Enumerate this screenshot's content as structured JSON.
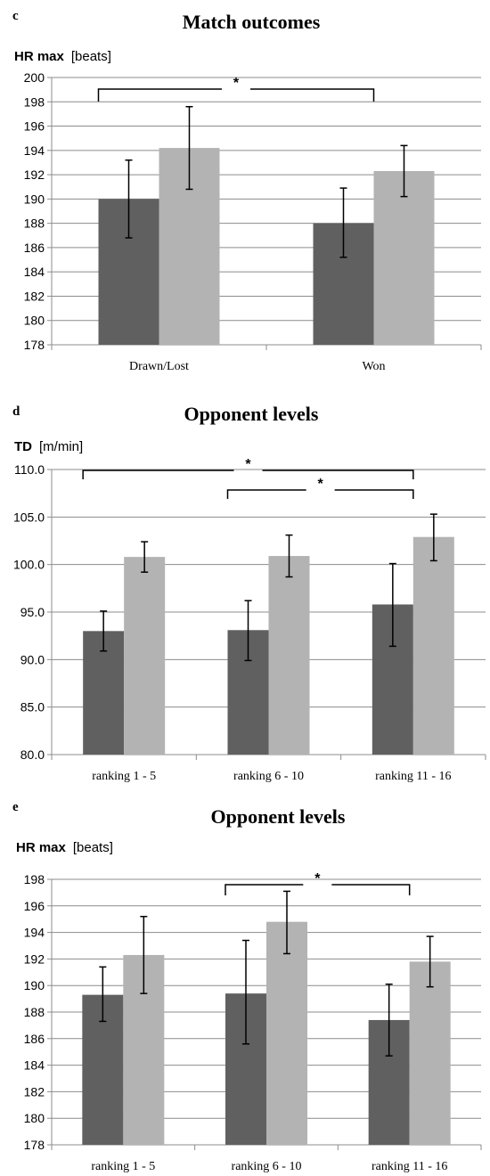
{
  "chart_data": [
    {
      "type": "bar",
      "panel_letter": "c",
      "title": "Match outcomes",
      "ylabel": "HR max",
      "yunit": "[beats]",
      "ylim": [
        178,
        200
      ],
      "ystep": 2,
      "ytick_decimals": 0,
      "categories": [
        "Drawn/Lost",
        "Won"
      ],
      "series": [
        {
          "name": "",
          "color": "#606060",
          "values": [
            190.0,
            188.0
          ],
          "err_low": [
            186.8,
            185.2
          ],
          "err_high": [
            193.2,
            190.9
          ]
        },
        {
          "name": "",
          "color": "#b3b3b3",
          "values": [
            194.2,
            192.3
          ],
          "err_low": [
            190.8,
            190.2
          ],
          "err_high": [
            197.6,
            194.4
          ]
        }
      ],
      "significance": [
        {
          "from": 0,
          "to": 1,
          "label": "*"
        }
      ]
    },
    {
      "type": "bar",
      "panel_letter": "d",
      "title": "Opponent  levels",
      "ylabel": "TD",
      "yunit": "[m/min]",
      "ylim": [
        80,
        110
      ],
      "ystep": 5,
      "ytick_decimals": 1,
      "categories": [
        "ranking 1 - 5",
        "ranking 6 - 10",
        "ranking 11 - 16"
      ],
      "series": [
        {
          "name": "",
          "color": "#606060",
          "values": [
            93.0,
            93.1,
            95.8
          ],
          "err_low": [
            90.9,
            89.9,
            91.4
          ],
          "err_high": [
            95.1,
            96.2,
            100.1
          ]
        },
        {
          "name": "",
          "color": "#b3b3b3",
          "values": [
            100.8,
            100.9,
            102.9
          ],
          "err_low": [
            99.2,
            98.7,
            100.4
          ],
          "err_high": [
            102.4,
            103.1,
            105.3
          ]
        }
      ],
      "significance": [
        {
          "from": 0,
          "to": 2,
          "label": "*"
        },
        {
          "from": 1,
          "to": 2,
          "label": "*"
        }
      ]
    },
    {
      "type": "bar",
      "panel_letter": "e",
      "title": "Opponent levels",
      "ylabel": "HR max",
      "yunit": "[beats]",
      "ylim": [
        178,
        198
      ],
      "ystep": 2,
      "ytick_decimals": 0,
      "categories": [
        "ranking 1 - 5",
        "ranking 6 - 10",
        "ranking 11 - 16"
      ],
      "series": [
        {
          "name": "",
          "color": "#606060",
          "values": [
            189.3,
            189.4,
            187.4
          ],
          "err_low": [
            187.3,
            185.6,
            184.7
          ],
          "err_high": [
            191.4,
            193.4,
            190.1
          ]
        },
        {
          "name": "",
          "color": "#b3b3b3",
          "values": [
            192.3,
            194.8,
            191.8
          ],
          "err_low": [
            189.4,
            192.4,
            189.9
          ],
          "err_high": [
            195.2,
            197.1,
            193.7
          ]
        }
      ],
      "significance": [
        {
          "from": 1,
          "to": 2,
          "label": "*"
        }
      ]
    }
  ]
}
